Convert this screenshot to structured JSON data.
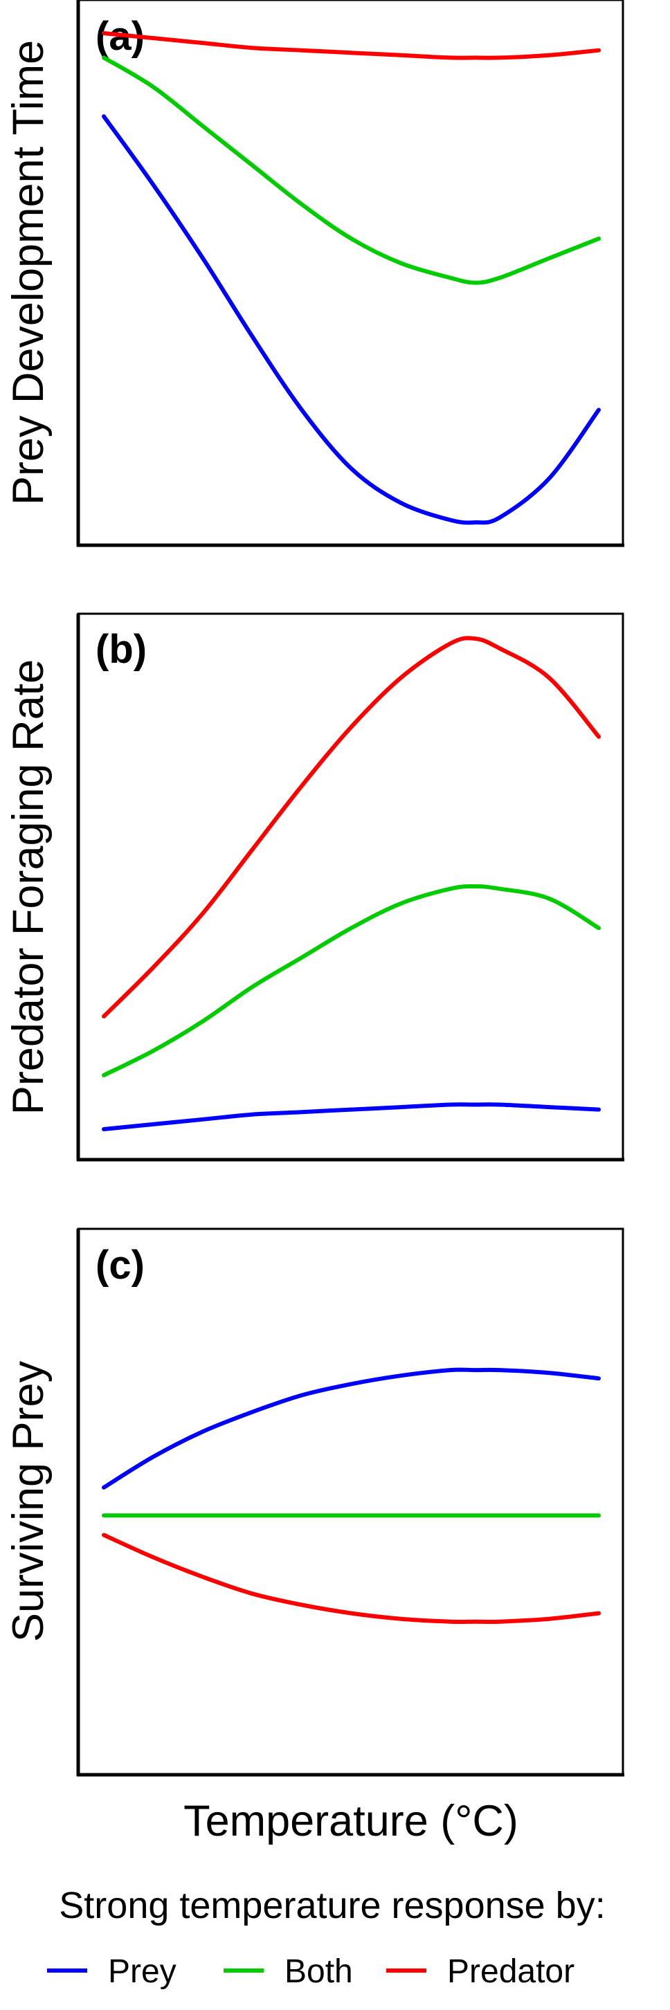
{
  "chart_data": [
    {
      "type": "line",
      "panel_label": "(a)",
      "ylabel": "Prey Development Time",
      "xlabel": "",
      "grid": false,
      "ylim": [
        0,
        1
      ],
      "x": [
        0,
        0.1,
        0.2,
        0.3,
        0.4,
        0.5,
        0.6,
        0.7,
        0.75,
        0.8,
        0.9,
        1.0
      ],
      "series": [
        {
          "name": "Prey",
          "color": "#0000ff",
          "values": [
            0.83,
            0.69,
            0.54,
            0.38,
            0.23,
            0.11,
            0.04,
            0.005,
            0.0,
            0.01,
            0.09,
            0.23
          ]
        },
        {
          "name": "Both",
          "color": "#00cc00",
          "values": [
            0.95,
            0.89,
            0.81,
            0.73,
            0.65,
            0.58,
            0.53,
            0.5,
            0.49,
            0.5,
            0.54,
            0.58
          ]
        },
        {
          "name": "Predator",
          "color": "#ff0000",
          "values": [
            1.0,
            0.99,
            0.98,
            0.97,
            0.965,
            0.96,
            0.955,
            0.95,
            0.95,
            0.95,
            0.955,
            0.965
          ]
        }
      ]
    },
    {
      "type": "line",
      "panel_label": "(b)",
      "ylabel": "Predator Foraging Rate",
      "xlabel": "",
      "grid": false,
      "ylim": [
        0,
        1
      ],
      "x": [
        0,
        0.1,
        0.2,
        0.3,
        0.4,
        0.5,
        0.6,
        0.7,
        0.75,
        0.8,
        0.9,
        1.0
      ],
      "series": [
        {
          "name": "Prey",
          "color": "#0000ff",
          "values": [
            0.0,
            0.01,
            0.02,
            0.03,
            0.035,
            0.04,
            0.045,
            0.05,
            0.05,
            0.05,
            0.045,
            0.04
          ]
        },
        {
          "name": "Both",
          "color": "#00cc00",
          "values": [
            0.11,
            0.16,
            0.22,
            0.29,
            0.35,
            0.41,
            0.46,
            0.49,
            0.495,
            0.49,
            0.47,
            0.41
          ]
        },
        {
          "name": "Predator",
          "color": "#ff0000",
          "values": [
            0.23,
            0.33,
            0.44,
            0.57,
            0.7,
            0.82,
            0.92,
            0.99,
            1.0,
            0.98,
            0.92,
            0.8
          ]
        }
      ]
    },
    {
      "type": "line",
      "panel_label": "(c)",
      "ylabel": "Surviving Prey",
      "xlabel": "Temperature (°C)",
      "grid": false,
      "ylim": [
        0,
        1
      ],
      "x": [
        0,
        0.1,
        0.2,
        0.3,
        0.4,
        0.5,
        0.6,
        0.7,
        0.75,
        0.8,
        0.9,
        1.0
      ],
      "series": [
        {
          "name": "Prey",
          "color": "#0000ff",
          "values": [
            0.55,
            0.66,
            0.75,
            0.82,
            0.88,
            0.92,
            0.95,
            0.97,
            0.97,
            0.97,
            0.96,
            0.94
          ]
        },
        {
          "name": "Both",
          "color": "#00cc00",
          "values": [
            0.45,
            0.45,
            0.45,
            0.45,
            0.45,
            0.45,
            0.45,
            0.45,
            0.45,
            0.45,
            0.45,
            0.45
          ]
        },
        {
          "name": "Predator",
          "color": "#ff0000",
          "values": [
            0.38,
            0.3,
            0.23,
            0.17,
            0.13,
            0.1,
            0.08,
            0.07,
            0.07,
            0.07,
            0.08,
            0.1
          ]
        }
      ]
    }
  ],
  "legend": {
    "title": "Strong temperature response by:",
    "placement": "bottom",
    "items": [
      {
        "label": "Prey",
        "color": "#0000ff"
      },
      {
        "label": "Both",
        "color": "#00cc00"
      },
      {
        "label": "Predator",
        "color": "#ff0000"
      }
    ]
  }
}
